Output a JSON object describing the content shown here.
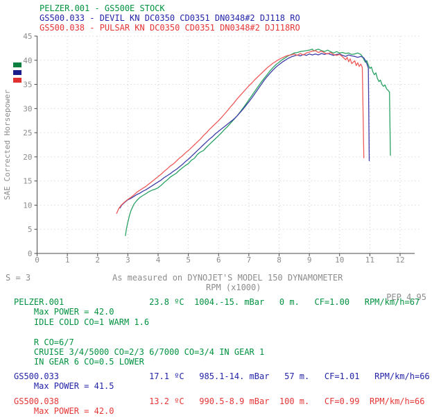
{
  "palette": {
    "green_text": "#00913f",
    "blue_text": "#2323a8",
    "red_text": "#e43535",
    "curve_green": "#28a263",
    "curve_blue": "#3d3da6",
    "curve_red": "#ef5a5a",
    "gray_text": "#8c8c8c",
    "axis": "#4a4a4a",
    "grid": "#c9c9c9",
    "background": "#ffffff"
  },
  "header": {
    "lines": [
      {
        "id": "pelzer-001",
        "text": "PELZER.001 - GS500E STOCK",
        "color": "green"
      },
      {
        "id": "gs500-033",
        "text": "GS500.033 - DEVIL KN DC0350 CD0351 DN0348#2 DJ118 RO",
        "color": "blue"
      },
      {
        "id": "gs500-038",
        "text": "GS500.038 - PULSAR KN DC0350 CD0351 DN0348#2 DJ118RO",
        "color": "red"
      }
    ]
  },
  "legend": {
    "swatches": [
      {
        "file": "PELZER.001",
        "color": "#0b8040"
      },
      {
        "file": "GS500.033",
        "color": "#1c1c8a"
      },
      {
        "file": "GS500.038",
        "color": "#e03030"
      }
    ]
  },
  "chart_data": {
    "type": "line",
    "title": "",
    "xlabel": "RPM (x1000)",
    "ylabel": "SAE Corrected Horsepower",
    "xlim": [
      0,
      12
    ],
    "ylim": [
      0,
      45
    ],
    "x_ticks": [
      0,
      1,
      2,
      3,
      4,
      5,
      6,
      7,
      8,
      9,
      10,
      11,
      12
    ],
    "y_ticks": [
      0,
      5,
      10,
      15,
      20,
      25,
      30,
      35,
      40,
      45
    ],
    "grid": true,
    "legend_position": "left-top-swatches",
    "footnotes": {
      "left": "S = 3",
      "right": "PEP 4.95"
    },
    "caption": "As measured on DYNOJET'S MODEL 150 DYNAMOMETER",
    "series": [
      {
        "id": "pelzer-001",
        "name": "PELZER.001 - GS500E STOCK",
        "color": "#28a263",
        "max_power": 42.0,
        "points": [
          [
            2.92,
            3.7
          ],
          [
            2.95,
            5.0
          ],
          [
            3.0,
            6.5
          ],
          [
            3.05,
            7.8
          ],
          [
            3.1,
            8.8
          ],
          [
            3.2,
            10.2
          ],
          [
            3.3,
            11.0
          ],
          [
            3.4,
            11.6
          ],
          [
            3.5,
            12.0
          ],
          [
            3.6,
            12.4
          ],
          [
            3.7,
            12.8
          ],
          [
            3.8,
            13.1
          ],
          [
            3.9,
            13.3
          ],
          [
            4.0,
            13.6
          ],
          [
            4.1,
            14.1
          ],
          [
            4.2,
            14.7
          ],
          [
            4.3,
            15.2
          ],
          [
            4.4,
            15.8
          ],
          [
            4.5,
            16.2
          ],
          [
            4.6,
            16.6
          ],
          [
            4.7,
            17.2
          ],
          [
            4.8,
            17.7
          ],
          [
            4.9,
            18.2
          ],
          [
            5.0,
            18.6
          ],
          [
            5.1,
            19.3
          ],
          [
            5.2,
            19.7
          ],
          [
            5.3,
            20.5
          ],
          [
            5.4,
            21.0
          ],
          [
            5.5,
            21.3
          ],
          [
            5.6,
            22.0
          ],
          [
            5.7,
            22.6
          ],
          [
            5.8,
            23.2
          ],
          [
            5.9,
            23.8
          ],
          [
            6.0,
            24.4
          ],
          [
            6.1,
            25.0
          ],
          [
            6.2,
            25.7
          ],
          [
            6.3,
            26.3
          ],
          [
            6.4,
            27.0
          ],
          [
            6.5,
            27.7
          ],
          [
            6.6,
            28.4
          ],
          [
            6.7,
            29.2
          ],
          [
            6.8,
            30.0
          ],
          [
            6.9,
            30.9
          ],
          [
            7.0,
            31.8
          ],
          [
            7.1,
            32.7
          ],
          [
            7.2,
            33.6
          ],
          [
            7.3,
            34.5
          ],
          [
            7.4,
            35.4
          ],
          [
            7.5,
            36.2
          ],
          [
            7.6,
            37.0
          ],
          [
            7.7,
            37.8
          ],
          [
            7.8,
            38.5
          ],
          [
            7.9,
            39.1
          ],
          [
            8.0,
            39.6
          ],
          [
            8.1,
            40.1
          ],
          [
            8.2,
            40.5
          ],
          [
            8.3,
            40.9
          ],
          [
            8.4,
            41.2
          ],
          [
            8.5,
            41.5
          ],
          [
            8.6,
            41.6
          ],
          [
            8.7,
            41.8
          ],
          [
            8.8,
            41.9
          ],
          [
            8.9,
            42.0
          ],
          [
            9.0,
            42.1
          ],
          [
            9.1,
            42.3
          ],
          [
            9.15,
            41.9
          ],
          [
            9.2,
            42.1
          ],
          [
            9.3,
            42.3
          ],
          [
            9.4,
            42.0
          ],
          [
            9.5,
            41.8
          ],
          [
            9.6,
            42.1
          ],
          [
            9.7,
            41.8
          ],
          [
            9.8,
            41.5
          ],
          [
            9.9,
            41.8
          ],
          [
            10.0,
            41.5
          ],
          [
            10.1,
            41.6
          ],
          [
            10.2,
            41.4
          ],
          [
            10.3,
            41.5
          ],
          [
            10.4,
            41.2
          ],
          [
            10.5,
            41.3
          ],
          [
            10.6,
            41.5
          ],
          [
            10.7,
            41.2
          ],
          [
            10.75,
            40.8
          ],
          [
            10.8,
            40.2
          ],
          [
            10.85,
            39.6
          ],
          [
            10.9,
            39.9
          ],
          [
            10.95,
            39.0
          ],
          [
            11.0,
            38.3
          ],
          [
            11.05,
            38.6
          ],
          [
            11.1,
            37.6
          ],
          [
            11.15,
            37.0
          ],
          [
            11.2,
            37.4
          ],
          [
            11.25,
            36.2
          ],
          [
            11.3,
            35.6
          ],
          [
            11.35,
            35.9
          ],
          [
            11.4,
            35.0
          ],
          [
            11.45,
            34.6
          ],
          [
            11.5,
            34.9
          ],
          [
            11.55,
            34.1
          ],
          [
            11.6,
            33.8
          ],
          [
            11.65,
            33.4
          ],
          [
            11.68,
            20.3
          ]
        ]
      },
      {
        "id": "gs500-033",
        "name": "GS500.033 - DEVIL KN",
        "color": "#3d3da6",
        "max_power": 41.5,
        "points": [
          [
            2.74,
            9.4
          ],
          [
            2.8,
            10.0
          ],
          [
            2.9,
            10.6
          ],
          [
            3.0,
            11.1
          ],
          [
            3.1,
            11.4
          ],
          [
            3.2,
            11.8
          ],
          [
            3.3,
            12.2
          ],
          [
            3.4,
            12.5
          ],
          [
            3.5,
            12.9
          ],
          [
            3.6,
            13.2
          ],
          [
            3.7,
            13.6
          ],
          [
            3.8,
            14.0
          ],
          [
            3.9,
            14.4
          ],
          [
            4.0,
            14.8
          ],
          [
            4.1,
            15.2
          ],
          [
            4.2,
            15.7
          ],
          [
            4.3,
            16.1
          ],
          [
            4.4,
            16.5
          ],
          [
            4.5,
            17.0
          ],
          [
            4.6,
            17.4
          ],
          [
            4.7,
            17.9
          ],
          [
            4.8,
            18.4
          ],
          [
            4.9,
            19.0
          ],
          [
            5.0,
            19.5
          ],
          [
            5.1,
            20.1
          ],
          [
            5.2,
            20.7
          ],
          [
            5.3,
            21.3
          ],
          [
            5.4,
            21.9
          ],
          [
            5.5,
            22.5
          ],
          [
            5.6,
            23.1
          ],
          [
            5.7,
            23.7
          ],
          [
            5.8,
            24.2
          ],
          [
            5.9,
            24.8
          ],
          [
            6.0,
            25.3
          ],
          [
            6.1,
            25.8
          ],
          [
            6.2,
            26.3
          ],
          [
            6.3,
            26.8
          ],
          [
            6.4,
            27.3
          ],
          [
            6.5,
            27.8
          ],
          [
            6.6,
            28.4
          ],
          [
            6.7,
            29.1
          ],
          [
            6.8,
            29.8
          ],
          [
            6.9,
            30.6
          ],
          [
            7.0,
            31.4
          ],
          [
            7.1,
            32.2
          ],
          [
            7.2,
            33.1
          ],
          [
            7.3,
            34.0
          ],
          [
            7.4,
            34.9
          ],
          [
            7.5,
            35.8
          ],
          [
            7.6,
            36.6
          ],
          [
            7.7,
            37.3
          ],
          [
            7.8,
            38.0
          ],
          [
            7.9,
            38.6
          ],
          [
            8.0,
            39.1
          ],
          [
            8.1,
            39.6
          ],
          [
            8.2,
            40.0
          ],
          [
            8.3,
            40.4
          ],
          [
            8.4,
            40.7
          ],
          [
            8.5,
            40.9
          ],
          [
            8.6,
            41.1
          ],
          [
            8.7,
            40.9
          ],
          [
            8.8,
            41.2
          ],
          [
            8.9,
            41.0
          ],
          [
            9.0,
            41.3
          ],
          [
            9.1,
            41.1
          ],
          [
            9.2,
            41.3
          ],
          [
            9.3,
            41.1
          ],
          [
            9.4,
            41.4
          ],
          [
            9.5,
            41.2
          ],
          [
            9.6,
            41.4
          ],
          [
            9.7,
            41.2
          ],
          [
            9.8,
            41.0
          ],
          [
            9.9,
            41.2
          ],
          [
            10.0,
            41.3
          ],
          [
            10.1,
            41.0
          ],
          [
            10.2,
            40.8
          ],
          [
            10.3,
            41.1
          ],
          [
            10.4,
            40.9
          ],
          [
            10.5,
            40.8
          ],
          [
            10.6,
            40.6
          ],
          [
            10.7,
            40.8
          ],
          [
            10.8,
            40.5
          ],
          [
            10.85,
            40.0
          ],
          [
            10.9,
            39.3
          ],
          [
            10.95,
            38.4
          ],
          [
            10.98,
            19.2
          ]
        ]
      },
      {
        "id": "gs500-038",
        "name": "GS500.038 - PULSAR KN",
        "color": "#ef5a5a",
        "max_power": 42.0,
        "points": [
          [
            2.63,
            8.3
          ],
          [
            2.7,
            9.3
          ],
          [
            2.8,
            10.1
          ],
          [
            2.9,
            10.7
          ],
          [
            3.0,
            11.2
          ],
          [
            3.1,
            11.6
          ],
          [
            3.2,
            12.1
          ],
          [
            3.3,
            12.7
          ],
          [
            3.4,
            13.1
          ],
          [
            3.5,
            13.5
          ],
          [
            3.6,
            13.9
          ],
          [
            3.7,
            14.4
          ],
          [
            3.8,
            14.9
          ],
          [
            3.9,
            15.4
          ],
          [
            4.0,
            15.9
          ],
          [
            4.1,
            16.4
          ],
          [
            4.2,
            17.0
          ],
          [
            4.3,
            17.5
          ],
          [
            4.4,
            18.1
          ],
          [
            4.5,
            18.5
          ],
          [
            4.6,
            19.1
          ],
          [
            4.7,
            19.7
          ],
          [
            4.8,
            20.2
          ],
          [
            4.9,
            20.8
          ],
          [
            5.0,
            21.3
          ],
          [
            5.1,
            21.9
          ],
          [
            5.2,
            22.5
          ],
          [
            5.3,
            23.1
          ],
          [
            5.4,
            23.7
          ],
          [
            5.5,
            24.4
          ],
          [
            5.6,
            25.0
          ],
          [
            5.7,
            25.7
          ],
          [
            5.8,
            26.3
          ],
          [
            5.9,
            26.9
          ],
          [
            6.0,
            27.5
          ],
          [
            6.1,
            28.2
          ],
          [
            6.2,
            28.9
          ],
          [
            6.3,
            29.6
          ],
          [
            6.4,
            30.4
          ],
          [
            6.5,
            31.1
          ],
          [
            6.6,
            31.9
          ],
          [
            6.7,
            32.6
          ],
          [
            6.8,
            33.3
          ],
          [
            6.9,
            34.0
          ],
          [
            7.0,
            34.7
          ],
          [
            7.1,
            35.3
          ],
          [
            7.2,
            36.0
          ],
          [
            7.3,
            36.6
          ],
          [
            7.4,
            37.2
          ],
          [
            7.5,
            37.8
          ],
          [
            7.6,
            38.4
          ],
          [
            7.7,
            38.9
          ],
          [
            7.8,
            39.4
          ],
          [
            7.9,
            39.8
          ],
          [
            8.0,
            40.2
          ],
          [
            8.1,
            40.5
          ],
          [
            8.2,
            40.8
          ],
          [
            8.3,
            41.0
          ],
          [
            8.4,
            41.1
          ],
          [
            8.5,
            41.3
          ],
          [
            8.6,
            41.0
          ],
          [
            8.7,
            41.4
          ],
          [
            8.8,
            41.1
          ],
          [
            8.9,
            41.5
          ],
          [
            9.0,
            41.7
          ],
          [
            9.1,
            41.9
          ],
          [
            9.2,
            42.0
          ],
          [
            9.3,
            41.6
          ],
          [
            9.4,
            41.9
          ],
          [
            9.5,
            41.5
          ],
          [
            9.6,
            41.3
          ],
          [
            9.7,
            41.6
          ],
          [
            9.8,
            41.2
          ],
          [
            9.9,
            41.0
          ],
          [
            10.0,
            41.2
          ],
          [
            10.1,
            40.7
          ],
          [
            10.2,
            40.1
          ],
          [
            10.25,
            40.6
          ],
          [
            10.3,
            39.7
          ],
          [
            10.35,
            40.3
          ],
          [
            10.4,
            39.3
          ],
          [
            10.5,
            39.9
          ],
          [
            10.55,
            38.9
          ],
          [
            10.6,
            39.5
          ],
          [
            10.65,
            38.7
          ],
          [
            10.7,
            39.2
          ],
          [
            10.75,
            38.5
          ],
          [
            10.8,
            19.8
          ]
        ]
      }
    ]
  },
  "results": {
    "blocks": [
      {
        "id": "pelzer-001",
        "color": "green",
        "lines": [
          "PELZER.001                 23.8 ºC  1004.-15. mBar   0 m.   CF=1.00   RPM/km/h=67",
          "    Max POWER = 42.0",
          "    IDLE COLD CO=1 WARM 1.6",
          "",
          "    R CO=6/7",
          "    CRUISE 3/4/5000 CO=2/3 6/7000 CO=3/4 IN GEAR 1",
          "    IN GEAR 6 CO=0.5 LOWER"
        ]
      },
      {
        "id": "gs500-033",
        "color": "blue",
        "lines": [
          "GS500.033                  17.1 ºC   985.1-14. mBar   57 m.   CF=1.01   RPM/km/h=66",
          "    Max POWER = 41.5"
        ]
      },
      {
        "id": "gs500-038",
        "color": "red",
        "lines": [
          "GS500.038                  13.2 ºC   990.5-8.9 mBar  100 m.   CF=0.99  RPM/km/h=66",
          "    Max POWER = 42.0"
        ]
      }
    ]
  }
}
